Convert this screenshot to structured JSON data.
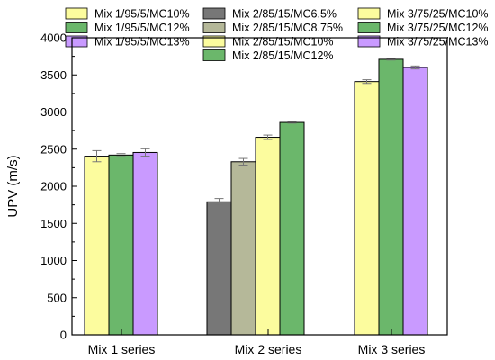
{
  "chart_data": {
    "type": "bar",
    "title": "",
    "xlabel": "",
    "ylabel": "UPV (m/s)",
    "ylim": [
      0,
      4000
    ],
    "yticks": [
      0,
      500,
      1000,
      1500,
      2000,
      2500,
      3000,
      3500,
      4000
    ],
    "grid": false,
    "legend_position": "top",
    "categories": [
      "Mix 1 series",
      "Mix 2 series",
      "Mix 3 series"
    ],
    "groups": [
      {
        "category": "Mix 1 series",
        "bars": [
          {
            "name": "Mix 1/95/5/MC10%",
            "value": 2405,
            "error": 75,
            "color": "#fcfc9e"
          },
          {
            "name": "Mix 1/95/5/MC12%",
            "value": 2420,
            "error": 20,
            "color": "#6bb76b"
          },
          {
            "name": "Mix 1/95/5/MC13%",
            "value": 2455,
            "error": 50,
            "color": "#c99aff"
          }
        ]
      },
      {
        "category": "Mix 2 series",
        "bars": [
          {
            "name": "Mix 2/85/15/MC6.5%",
            "value": 1790,
            "error": 45,
            "color": "#777777"
          },
          {
            "name": "Mix 2/85/15/MC8.75%",
            "value": 2330,
            "error": 45,
            "color": "#b5b899"
          },
          {
            "name": "Mix 2/85/15/MC10%",
            "value": 2660,
            "error": 30,
            "color": "#fcfc9e"
          },
          {
            "name": "Mix 2/85/15/MC12%",
            "value": 2860,
            "error": 10,
            "color": "#6bb76b"
          }
        ]
      },
      {
        "category": "Mix 3 series",
        "bars": [
          {
            "name": "Mix 3/75/25/MC10%",
            "value": 3410,
            "error": 25,
            "color": "#fcfc9e"
          },
          {
            "name": "Mix 3/75/25/MC12%",
            "value": 3710,
            "error": 10,
            "color": "#6bb76b"
          },
          {
            "name": "Mix 3/75/25/MC13%",
            "value": 3600,
            "error": 20,
            "color": "#c99aff"
          }
        ]
      }
    ],
    "legend_columns": [
      [
        "Mix 1/95/5/MC10%",
        "Mix 1/95/5/MC12%",
        "Mix 1/95/5/MC13%"
      ],
      [
        "Mix 2/85/15/MC6.5%",
        "Mix 2/85/15/MC8.75%",
        "Mix 2/85/15/MC10%",
        "Mix 2/85/15/MC12%"
      ],
      [
        "Mix 3/75/25/MC10%",
        "Mix 3/75/25/MC12%",
        "Mix 3/75/25/MC13%"
      ]
    ]
  }
}
